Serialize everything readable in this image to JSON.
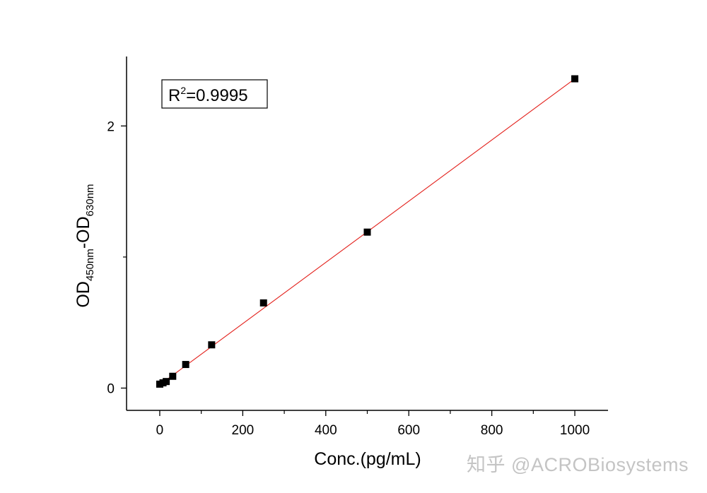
{
  "chart_data": {
    "type": "scatter",
    "title": "",
    "xlabel": "Conc.(pg/mL)",
    "ylabel": {
      "base1": "OD",
      "sub1": "450nm",
      "sep": "-OD",
      "sub2": "630nm"
    },
    "xlim": [
      -80,
      1080
    ],
    "ylim": [
      -0.17,
      2.53
    ],
    "x_ticks": [
      0,
      200,
      400,
      600,
      800,
      1000
    ],
    "x_minor_ticks": [
      100,
      300,
      500,
      700,
      900
    ],
    "y_ticks": [
      0,
      2
    ],
    "y_minor_ticks": [
      1
    ],
    "grid": false,
    "points": [
      {
        "x": 0,
        "y": 0.03
      },
      {
        "x": 7.8,
        "y": 0.04
      },
      {
        "x": 15.6,
        "y": 0.05
      },
      {
        "x": 31.25,
        "y": 0.09
      },
      {
        "x": 62.5,
        "y": 0.18
      },
      {
        "x": 125,
        "y": 0.33
      },
      {
        "x": 250,
        "y": 0.65
      },
      {
        "x": 500,
        "y": 1.19
      },
      {
        "x": 1000,
        "y": 2.36
      }
    ],
    "fit_line": {
      "x": [
        0,
        1000
      ],
      "y": [
        0.025,
        2.36
      ],
      "color": "#e3201b"
    },
    "annotation": {
      "base": "R",
      "sup": "2",
      "rest": "=0.9995"
    },
    "marker_color": "#000000"
  },
  "watermark": "知乎 @ACROBiosystems"
}
